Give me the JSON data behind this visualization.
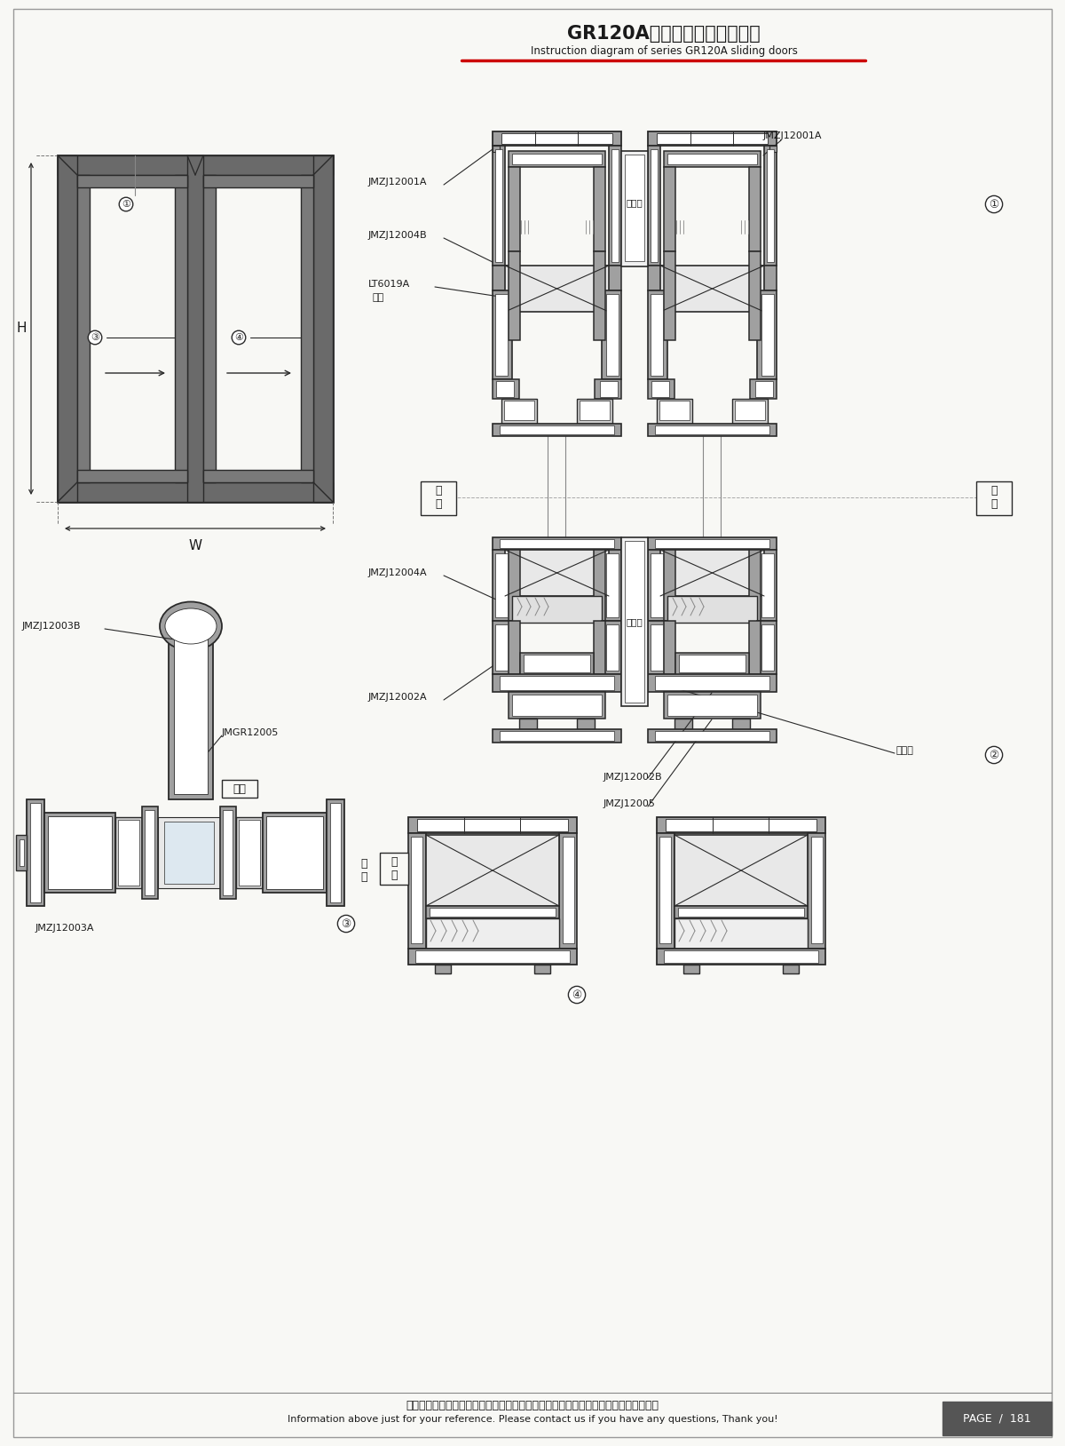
{
  "title_zh": "GR120A系列提升推拉窗结构图",
  "title_en": "Instruction diagram of series GR120A sliding doors",
  "footer_zh": "图中所示型材截面、装配、编号、尺寸及重量仅供参考。如有疑问，请向本公司查询。",
  "footer_en": "Information above just for your reference. Please contact us if you have any questions, Thank you!",
  "page_text": "PAGE  /  181",
  "bg_color": "#f8f8f5",
  "line_color": "#2a2a2a",
  "profile_fill": "#a0a0a0",
  "profile_edge": "#2a2a2a",
  "white": "#ffffff",
  "red_color": "#cc0000",
  "dim_color": "#444444",
  "label_color": "#1a1a1a",
  "box_fill": "#555555"
}
